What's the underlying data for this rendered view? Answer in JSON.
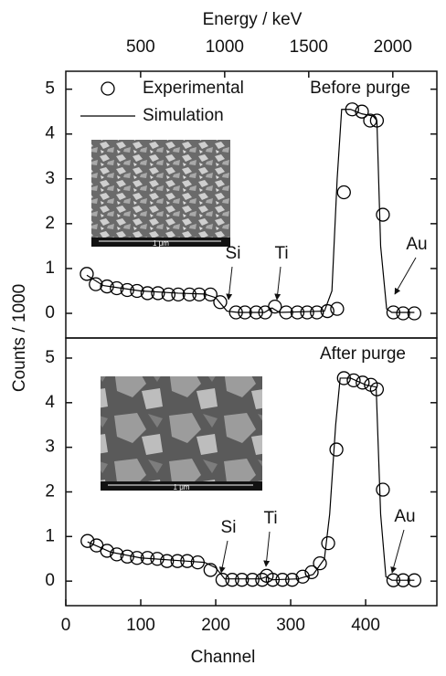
{
  "chart_data": [
    {
      "type": "scatter",
      "panel_label": "Before purge",
      "ylabel": "Counts / 1000",
      "x2label": "Energy / keV",
      "x2lim": [
        55,
        2262
      ],
      "x2ticks": [
        500,
        1000,
        1500,
        2000
      ],
      "xlim": [
        0,
        495
      ],
      "ylim": [
        -0.55,
        5.4
      ],
      "yticks": [
        0,
        1,
        2,
        3,
        4,
        5
      ],
      "inset_label": "1 μm",
      "series": [
        {
          "name": "Experimental",
          "color": "#000000",
          "marker": "circle",
          "x": [
            28,
            40,
            55,
            68,
            82,
            95,
            109,
            123,
            137,
            150,
            165,
            178,
            193,
            206,
            227,
            239,
            254,
            266,
            279,
            294,
            309,
            322,
            335,
            349,
            362,
            371,
            382,
            395,
            406,
            415,
            423,
            437,
            450,
            465
          ],
          "values": [
            0.88,
            0.65,
            0.6,
            0.56,
            0.52,
            0.5,
            0.45,
            0.45,
            0.42,
            0.42,
            0.42,
            0.42,
            0.42,
            0.25,
            0.02,
            0.02,
            0.02,
            0.02,
            0.15,
            0.02,
            0.02,
            0.02,
            0.02,
            0.05,
            0.1,
            2.7,
            4.55,
            4.5,
            4.3,
            4.3,
            2.2,
            0.02,
            0,
            0
          ]
        },
        {
          "name": "Simulation",
          "color": "#000000",
          "marker": "line",
          "x": [
            28,
            50,
            100,
            150,
            185,
            200,
            215,
            230,
            265,
            275,
            285,
            345,
            355,
            362,
            368,
            380,
            395,
            410,
            415,
            420,
            428,
            435,
            465
          ],
          "values": [
            0.85,
            0.62,
            0.5,
            0.45,
            0.43,
            0.35,
            0.05,
            0.02,
            0.02,
            0.12,
            0.02,
            0.05,
            0.5,
            3.0,
            4.55,
            4.55,
            4.45,
            4.4,
            4.3,
            1.5,
            0.1,
            0.02,
            0.02
          ]
        }
      ],
      "annotations": [
        "Si",
        "Ti",
        "Au"
      ]
    },
    {
      "type": "scatter",
      "panel_label": "After purge",
      "xlabel": "Channel",
      "xlim": [
        0,
        495
      ],
      "xticks": [
        0,
        100,
        200,
        300,
        400
      ],
      "ylim": [
        -0.55,
        5.45
      ],
      "yticks": [
        0,
        1,
        2,
        3,
        4,
        5
      ],
      "inset_label": "1 μm",
      "series": [
        {
          "color": "#000000",
          "marker": "circle",
          "x": [
            29,
            41,
            55,
            68,
            82,
            95,
            109,
            122,
            135,
            149,
            162,
            176,
            193,
            209,
            222,
            235,
            249,
            262,
            268,
            276,
            289,
            302,
            316,
            328,
            339,
            350,
            361,
            371,
            384,
            396,
            407,
            415,
            423,
            437,
            450,
            465
          ],
          "values": [
            0.9,
            0.8,
            0.68,
            0.6,
            0.55,
            0.52,
            0.52,
            0.5,
            0.45,
            0.45,
            0.45,
            0.42,
            0.25,
            0.03,
            0.03,
            0.03,
            0.03,
            0.03,
            0.12,
            0.03,
            0.03,
            0.03,
            0.1,
            0.2,
            0.4,
            0.85,
            2.95,
            4.55,
            4.5,
            4.45,
            4.4,
            4.3,
            2.05,
            0.02,
            0.02,
            0.02
          ]
        },
        {
          "color": "#000000",
          "marker": "line",
          "x": [
            29,
            60,
            100,
            160,
            185,
            200,
            212,
            260,
            268,
            275,
            310,
            330,
            345,
            352,
            360,
            366,
            380,
            400,
            414,
            420,
            427,
            435,
            465
          ],
          "values": [
            0.88,
            0.65,
            0.52,
            0.45,
            0.42,
            0.3,
            0.05,
            0.05,
            0.1,
            0.03,
            0.05,
            0.15,
            0.5,
            1.5,
            3.5,
            4.55,
            4.55,
            4.4,
            4.35,
            1.5,
            0.1,
            0.02,
            0.02
          ]
        }
      ],
      "annotations": [
        "Si",
        "Ti",
        "Au"
      ]
    }
  ]
}
